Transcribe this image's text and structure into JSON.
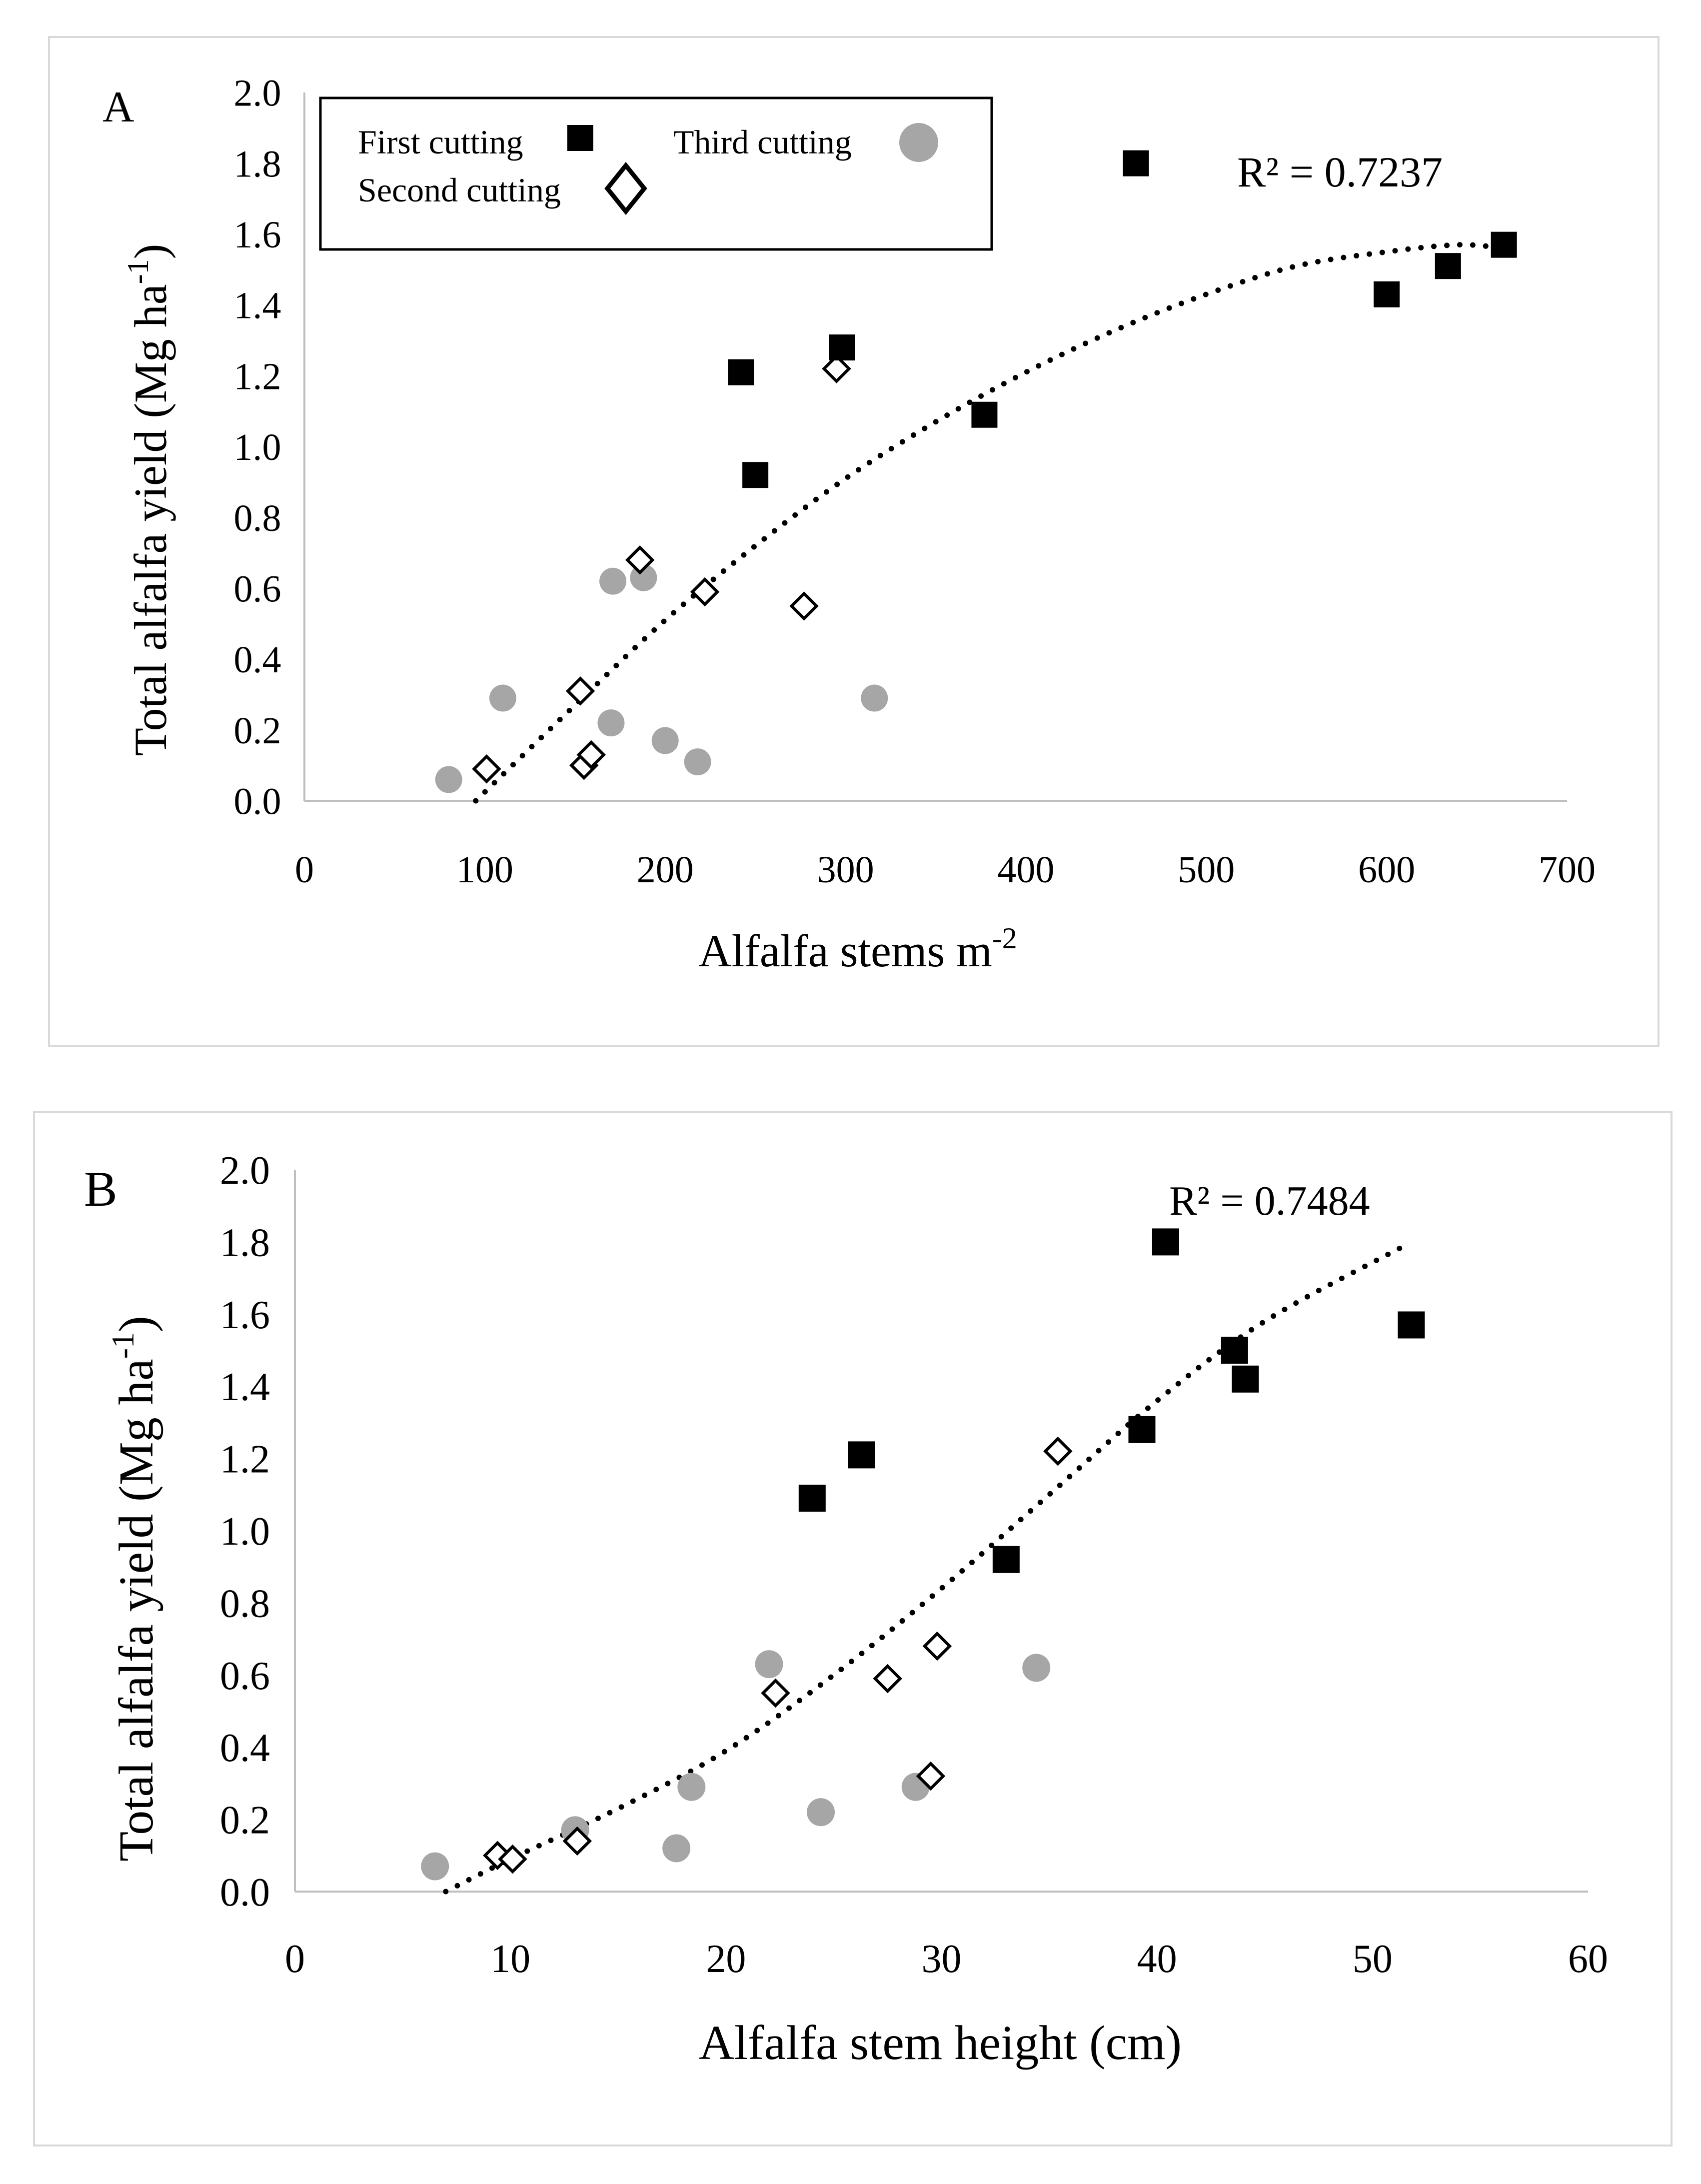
{
  "chart_data": [
    {
      "type": "scatter",
      "panel_letter": "A",
      "xlabel": "Alfalfa stems m",
      "xlabel_sup": "-2",
      "ylabel": "Total alfalfa yield (Mg ha",
      "ylabel_sup": "-1",
      "ylabel_close": ")",
      "xlim": [
        0,
        700
      ],
      "ylim": [
        0,
        2.0
      ],
      "xticks": [
        "0",
        "100",
        "200",
        "300",
        "400",
        "500",
        "600",
        "700"
      ],
      "yticks": [
        "0.0",
        "0.2",
        "0.4",
        "0.6",
        "0.8",
        "1.0",
        "1.2",
        "1.4",
        "1.6",
        "1.8",
        "2.0"
      ],
      "r2_label": "R² = 0.7237",
      "legend_placement": "top-left",
      "legend": [
        {
          "name": "First cutting",
          "marker": "square"
        },
        {
          "name": "Third cutting",
          "marker": "circle"
        },
        {
          "name": "Second cutting",
          "marker": "diamond"
        }
      ],
      "trendline": {
        "type": "polynomial-2",
        "style": "dotted",
        "x_range": [
          95,
          665
        ],
        "points": [
          [
            95,
            0.0
          ],
          [
            150,
            0.27
          ],
          [
            200,
            0.51
          ],
          [
            250,
            0.72
          ],
          [
            300,
            0.91
          ],
          [
            350,
            1.07
          ],
          [
            400,
            1.21
          ],
          [
            450,
            1.33
          ],
          [
            500,
            1.43
          ],
          [
            550,
            1.51
          ],
          [
            600,
            1.55
          ],
          [
            640,
            1.57
          ],
          [
            665,
            1.56
          ]
        ]
      },
      "series": [
        {
          "name": "First cutting",
          "marker": "square",
          "points": [
            [
              242,
              1.21
            ],
            [
              298,
              1.28
            ],
            [
              250,
              0.92
            ],
            [
              377,
              1.09
            ],
            [
              461,
              1.8
            ],
            [
              600,
              1.43
            ],
            [
              634,
              1.51
            ],
            [
              665,
              1.57
            ]
          ]
        },
        {
          "name": "Second cutting",
          "marker": "diamond",
          "points": [
            [
              295,
              1.22
            ],
            [
              186,
              0.68
            ],
            [
              222,
              0.59
            ],
            [
              277,
              0.55
            ],
            [
              153,
              0.31
            ],
            [
              101,
              0.09
            ],
            [
              155,
              0.1
            ],
            [
              159,
              0.13
            ]
          ]
        },
        {
          "name": "Third cutting",
          "marker": "circle",
          "points": [
            [
              171,
              0.62
            ],
            [
              188,
              0.63
            ],
            [
              110,
              0.29
            ],
            [
              316,
              0.29
            ],
            [
              170,
              0.22
            ],
            [
              200,
              0.17
            ],
            [
              218,
              0.11
            ],
            [
              80,
              0.06
            ]
          ]
        }
      ]
    },
    {
      "type": "scatter",
      "panel_letter": "B",
      "xlabel": "Alfalfa stem height (cm)",
      "ylabel": "Total alfalfa yield (Mg ha",
      "ylabel_sup": "-1",
      "ylabel_close": ")",
      "xlim": [
        0,
        60
      ],
      "ylim": [
        0,
        2.0
      ],
      "xticks": [
        "0",
        "10",
        "20",
        "30",
        "40",
        "50",
        "60"
      ],
      "yticks": [
        "0.0",
        "0.2",
        "0.4",
        "0.6",
        "0.8",
        "1.0",
        "1.2",
        "1.4",
        "1.6",
        "1.8",
        "2.0"
      ],
      "r2_label": "R² = 0.7484",
      "trendline": {
        "type": "polynomial-2",
        "style": "dotted",
        "x_range": [
          7,
          51.5
        ],
        "points": [
          [
            7,
            0.0
          ],
          [
            10,
            0.09
          ],
          [
            15,
            0.23
          ],
          [
            20,
            0.39
          ],
          [
            25,
            0.6
          ],
          [
            30,
            0.84
          ],
          [
            35,
            1.1
          ],
          [
            40,
            1.36
          ],
          [
            45,
            1.58
          ],
          [
            51.5,
            1.79
          ]
        ]
      },
      "series": [
        {
          "name": "First cutting",
          "marker": "square",
          "points": [
            [
              40.4,
              1.8
            ],
            [
              51.8,
              1.57
            ],
            [
              43.6,
              1.5
            ],
            [
              44.1,
              1.42
            ],
            [
              39.3,
              1.28
            ],
            [
              26.3,
              1.21
            ],
            [
              24,
              1.09
            ],
            [
              33,
              0.92
            ]
          ]
        },
        {
          "name": "Second cutting",
          "marker": "diamond",
          "points": [
            [
              35.4,
              1.22
            ],
            [
              29.8,
              0.68
            ],
            [
              27.5,
              0.59
            ],
            [
              22.3,
              0.55
            ],
            [
              29.5,
              0.32
            ],
            [
              9.4,
              0.1
            ],
            [
              10.1,
              0.09
            ],
            [
              13.1,
              0.14
            ]
          ]
        },
        {
          "name": "Third cutting",
          "marker": "circle",
          "points": [
            [
              22,
              0.63
            ],
            [
              34.4,
              0.62
            ],
            [
              18.4,
              0.29
            ],
            [
              28.8,
              0.29
            ],
            [
              24.4,
              0.22
            ],
            [
              13,
              0.17
            ],
            [
              17.7,
              0.12
            ],
            [
              6.5,
              0.07
            ]
          ]
        }
      ]
    }
  ]
}
